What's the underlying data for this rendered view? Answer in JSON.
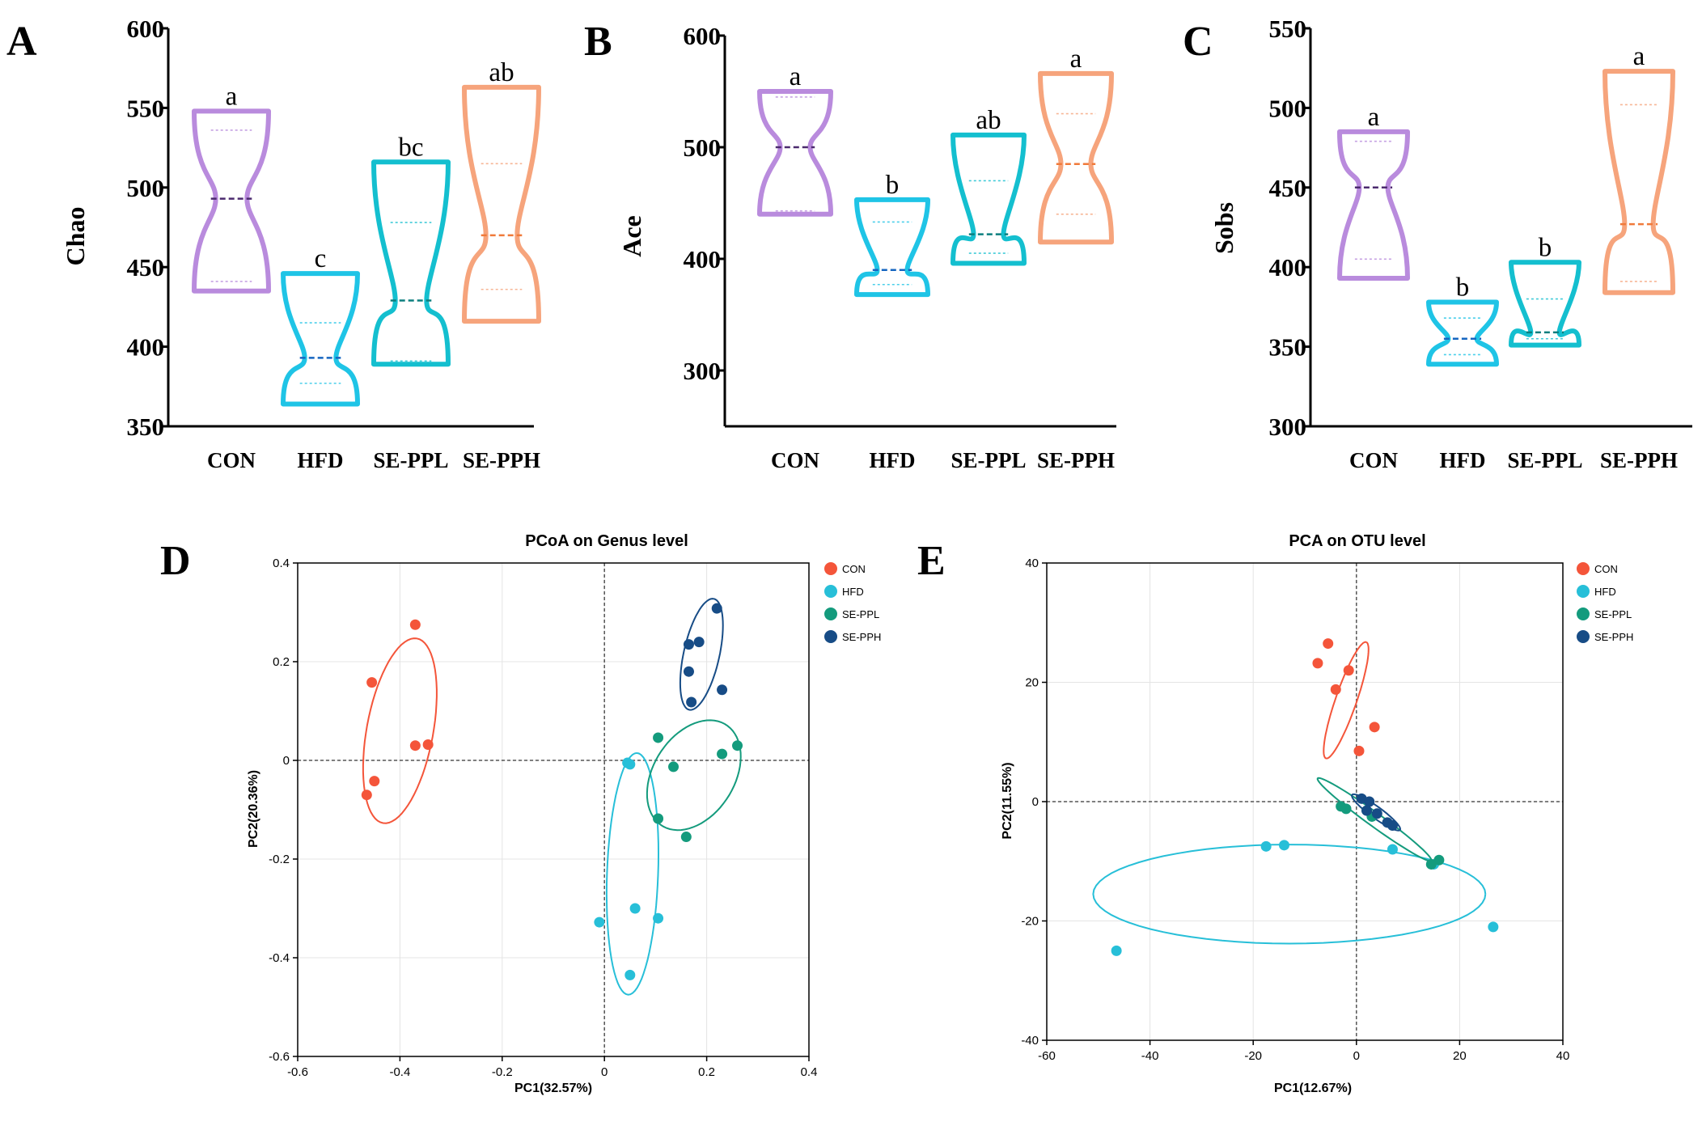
{
  "colors": {
    "CON": "#B98BDD",
    "HFD": "#1FC4E6",
    "SE-PPL": "#14BFCF",
    "SE-PPH": "#F6A47C",
    "CON_median": "#4B2A6E",
    "HFD_median": "#1565C0",
    "SE-PPL_median": "#0C7E7E",
    "SE-PPH_median": "#F07A3A",
    "pca_CON": "#F4553A",
    "pca_HFD": "#27BFD8",
    "pca_SE-PPL": "#149B7D",
    "pca_SE-PPH": "#174C86"
  },
  "chart_data": [
    {
      "id": "A",
      "panel_label": "A",
      "type": "violin",
      "ylabel": "Chao",
      "ylim": [
        350,
        600
      ],
      "yticks": [
        350,
        400,
        450,
        500,
        550,
        600
      ],
      "categories": [
        "CON",
        "HFD",
        "SE-PPL",
        "SE-PPH"
      ],
      "groups": [
        {
          "name": "CON",
          "min": 435,
          "max": 548,
          "median": 493,
          "q1": 441,
          "q3": 536,
          "sig": "a"
        },
        {
          "name": "HFD",
          "min": 364,
          "max": 446,
          "median": 393,
          "q1": 377,
          "q3": 415,
          "sig": "c"
        },
        {
          "name": "SE-PPL",
          "min": 389,
          "max": 516,
          "median": 429,
          "q1": 391,
          "q3": 478,
          "sig": "bc"
        },
        {
          "name": "SE-PPH",
          "min": 416,
          "max": 563,
          "median": 470,
          "q1": 436,
          "q3": 515,
          "sig": "ab"
        }
      ]
    },
    {
      "id": "B",
      "panel_label": "B",
      "type": "violin",
      "ylabel": "Ace",
      "ylim": [
        250,
        600
      ],
      "yticks": [
        300,
        400,
        500,
        600
      ],
      "categories": [
        "CON",
        "HFD",
        "SE-PPL",
        "SE-PPH"
      ],
      "groups": [
        {
          "name": "CON",
          "min": 440,
          "max": 550,
          "median": 500,
          "q1": 443,
          "q3": 545,
          "sig": "a"
        },
        {
          "name": "HFD",
          "min": 368,
          "max": 453,
          "median": 390,
          "q1": 377,
          "q3": 433,
          "sig": "b"
        },
        {
          "name": "SE-PPL",
          "min": 396,
          "max": 511,
          "median": 422,
          "q1": 405,
          "q3": 470,
          "sig": "ab"
        },
        {
          "name": "SE-PPH",
          "min": 415,
          "max": 566,
          "median": 485,
          "q1": 440,
          "q3": 530,
          "sig": "a"
        }
      ]
    },
    {
      "id": "C",
      "panel_label": "C",
      "type": "violin",
      "ylabel": "Sobs",
      "ylim": [
        300,
        550
      ],
      "yticks": [
        300,
        350,
        400,
        450,
        500,
        550
      ],
      "categories": [
        "CON",
        "HFD",
        "SE-PPL",
        "SE-PPH"
      ],
      "groups": [
        {
          "name": "CON",
          "min": 393,
          "max": 485,
          "median": 450,
          "q1": 405,
          "q3": 479,
          "sig": "a"
        },
        {
          "name": "HFD",
          "min": 339,
          "max": 378,
          "median": 355,
          "q1": 345,
          "q3": 368,
          "sig": "b"
        },
        {
          "name": "SE-PPL",
          "min": 351,
          "max": 403,
          "median": 359,
          "q1": 355,
          "q3": 380,
          "sig": "b"
        },
        {
          "name": "SE-PPH",
          "min": 384,
          "max": 523,
          "median": 427,
          "q1": 391,
          "q3": 502,
          "sig": "a"
        }
      ]
    },
    {
      "id": "D",
      "panel_label": "D",
      "type": "scatter",
      "title": "PCoA on Genus level",
      "xlabel": "PC1(32.57%)",
      "ylabel": "PC2(20.36%)",
      "xlim": [
        -0.6,
        0.4
      ],
      "ylim": [
        -0.6,
        0.4
      ],
      "xticks": [
        -0.6,
        -0.4,
        -0.2,
        0,
        0.2,
        0.4
      ],
      "yticks": [
        -0.6,
        -0.4,
        -0.2,
        0,
        0.2,
        0.4
      ],
      "legend": [
        "CON",
        "HFD",
        "SE-PPL",
        "SE-PPH"
      ],
      "series": [
        {
          "name": "CON",
          "points": [
            [
              -0.37,
              0.275
            ],
            [
              -0.455,
              0.158
            ],
            [
              -0.37,
              0.03
            ],
            [
              -0.345,
              0.032
            ],
            [
              -0.45,
              -0.042
            ],
            [
              -0.465,
              -0.07
            ]
          ],
          "ellipse": {
            "cx": -0.4,
            "cy": 0.06,
            "a": 0.19,
            "b": 0.065,
            "angle_deg": 80
          }
        },
        {
          "name": "HFD",
          "points": [
            [
              0.045,
              -0.005
            ],
            [
              0.05,
              -0.008
            ],
            [
              0.06,
              -0.3
            ],
            [
              0.105,
              -0.32
            ],
            [
              -0.01,
              -0.328
            ],
            [
              0.05,
              -0.435
            ]
          ],
          "ellipse": {
            "cx": 0.055,
            "cy": -0.23,
            "a": 0.245,
            "b": 0.05,
            "angle_deg": 88
          }
        },
        {
          "name": "SE-PPL",
          "points": [
            [
              0.105,
              0.046
            ],
            [
              0.135,
              -0.013
            ],
            [
              0.23,
              0.013
            ],
            [
              0.26,
              0.03
            ],
            [
              0.105,
              -0.118
            ],
            [
              0.16,
              -0.155
            ]
          ],
          "ellipse": {
            "cx": 0.175,
            "cy": -0.03,
            "a": 0.12,
            "b": 0.08,
            "angle_deg": 60
          }
        },
        {
          "name": "SE-PPH",
          "points": [
            [
              0.22,
              0.308
            ],
            [
              0.165,
              0.235
            ],
            [
              0.185,
              0.24
            ],
            [
              0.165,
              0.18
            ],
            [
              0.23,
              0.143
            ],
            [
              0.17,
              0.118
            ]
          ],
          "ellipse": {
            "cx": 0.19,
            "cy": 0.215,
            "a": 0.115,
            "b": 0.035,
            "angle_deg": 78
          }
        }
      ]
    },
    {
      "id": "E",
      "panel_label": "E",
      "type": "scatter",
      "title": "PCA on OTU level",
      "xlabel": "PC1(12.67%)",
      "ylabel": "PC2(11.55%)",
      "xlim": [
        -60,
        40
      ],
      "ylim": [
        -40,
        40
      ],
      "xticks": [
        -60,
        -40,
        -20,
        0,
        20,
        40
      ],
      "yticks": [
        -40,
        -20,
        0,
        20,
        40
      ],
      "legend": [
        "CON",
        "HFD",
        "SE-PPL",
        "SE-PPH"
      ],
      "series": [
        {
          "name": "CON",
          "points": [
            [
              -5.5,
              26.5
            ],
            [
              -7.5,
              23.2
            ],
            [
              -1.5,
              22
            ],
            [
              -4,
              18.8
            ],
            [
              3.5,
              12.5
            ],
            [
              0.5,
              8.5
            ]
          ],
          "ellipse": {
            "cx": -2,
            "cy": 17,
            "a": 10.5,
            "b": 2.0,
            "angle_deg": 68
          }
        },
        {
          "name": "HFD",
          "points": [
            [
              -17.5,
              -7.5
            ],
            [
              -14,
              -7.3
            ],
            [
              7,
              -8
            ],
            [
              15,
              -10.5
            ],
            [
              26.5,
              -21
            ],
            [
              -46.5,
              -25
            ]
          ],
          "ellipse": {
            "cx": -13,
            "cy": -15.5,
            "a": 38,
            "b": 8.3,
            "angle_deg": 0
          }
        },
        {
          "name": "SE-PPL",
          "points": [
            [
              -3,
              -0.8
            ],
            [
              -2,
              -1.2
            ],
            [
              2,
              -1.5
            ],
            [
              3,
              -2.5
            ],
            [
              16,
              -9.8
            ],
            [
              14.5,
              -10.5
            ]
          ],
          "ellipse": {
            "cx": 3.5,
            "cy": -3,
            "a": 13,
            "b": 1.2,
            "angle_deg": -32
          }
        },
        {
          "name": "SE-PPH",
          "points": [
            [
              1,
              0.5
            ],
            [
              2.5,
              0
            ],
            [
              2,
              -1.5
            ],
            [
              4,
              -2
            ],
            [
              6,
              -3.5
            ],
            [
              7,
              -4
            ]
          ],
          "ellipse": {
            "cx": 3.8,
            "cy": -1.8,
            "a": 5.5,
            "b": 1.0,
            "angle_deg": -32
          }
        }
      ]
    }
  ]
}
